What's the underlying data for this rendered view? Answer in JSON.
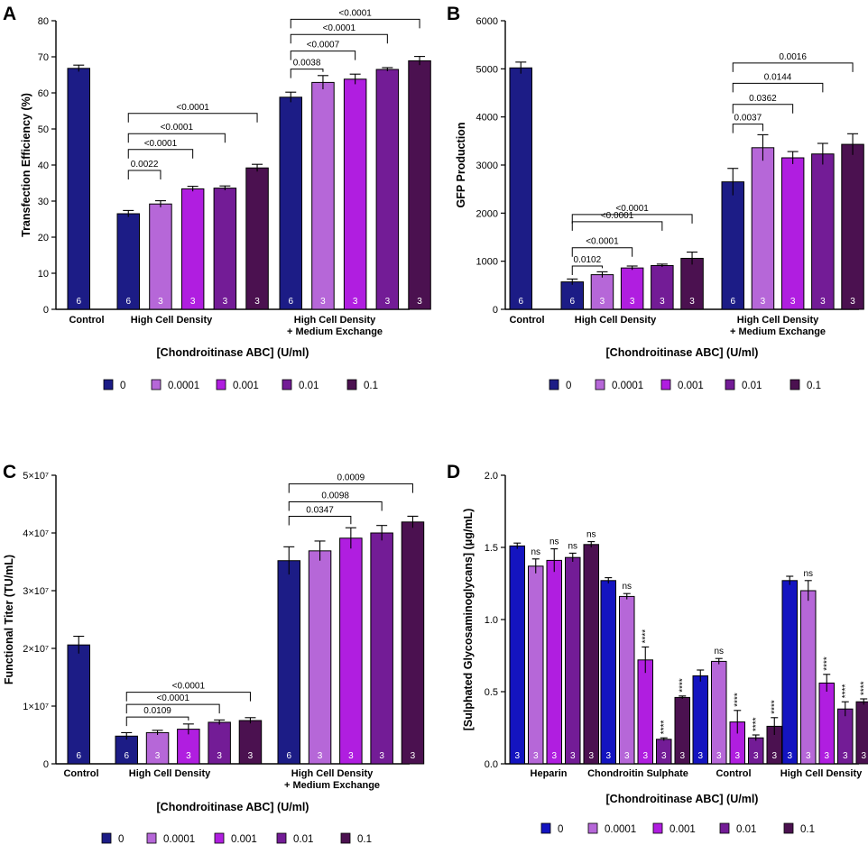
{
  "colors": {
    "c0": "#1c1c86",
    "c00001": "#b667d8",
    "c0001": "#b01ee0",
    "c001": "#731c96",
    "c01": "#4b1150",
    "d0": "#1414c0"
  },
  "chart_data": [
    {
      "panel": "A",
      "type": "bar",
      "ylabel": "Transfection Efficiency (%)",
      "xlabel": "[Chondroitinase ABC] (U/ml)",
      "ylim": [
        0,
        80
      ],
      "yticks": [
        "0",
        "10",
        "20",
        "30",
        "40",
        "50",
        "60",
        "70",
        "80"
      ],
      "tickvals": [
        0,
        10,
        20,
        30,
        40,
        50,
        60,
        70,
        80
      ],
      "legend": [
        "0",
        "0.0001",
        "0.001",
        "0.01",
        "0.1"
      ],
      "groups": [
        {
          "label": "Control",
          "bars": [
            {
              "s": 0,
              "v": 66.8,
              "e": 0.9,
              "n": "6"
            }
          ]
        },
        {
          "label": "High Cell Density",
          "bars": [
            {
              "s": 0,
              "v": 26.5,
              "e": 0.9,
              "n": "6"
            },
            {
              "s": 1,
              "v": 29.2,
              "e": 0.9,
              "n": "3"
            },
            {
              "s": 2,
              "v": 33.4,
              "e": 0.7,
              "n": "3"
            },
            {
              "s": 3,
              "v": 33.6,
              "e": 0.6,
              "n": "3"
            },
            {
              "s": 4,
              "v": 39.2,
              "e": 1.0,
              "n": "3"
            }
          ]
        },
        {
          "label": "High Cell Density\n+ Medium Exchange",
          "bars": [
            {
              "s": 0,
              "v": 58.8,
              "e": 1.4,
              "n": "6"
            },
            {
              "s": 1,
              "v": 62.9,
              "e": 1.9,
              "n": "3"
            },
            {
              "s": 2,
              "v": 63.8,
              "e": 1.4,
              "n": "3"
            },
            {
              "s": 3,
              "v": 66.5,
              "e": 0.5,
              "n": "3"
            },
            {
              "s": 4,
              "v": 68.9,
              "e": 1.2,
              "n": "3"
            }
          ]
        }
      ],
      "brackets": [
        {
          "g": 1,
          "from": 0,
          "to": 1,
          "y": 38.5,
          "label": "0.0022"
        },
        {
          "g": 1,
          "from": 0,
          "to": 2,
          "y": 44.3,
          "label": "<0.0001"
        },
        {
          "g": 1,
          "from": 0,
          "to": 3,
          "y": 48.7,
          "label": "<0.0001"
        },
        {
          "g": 1,
          "from": 0,
          "to": 4,
          "y": 54.3,
          "label": "<0.0001"
        },
        {
          "g": 2,
          "from": 0,
          "to": 1,
          "y": 66.6,
          "label": "0.0038"
        },
        {
          "g": 2,
          "from": 0,
          "to": 2,
          "y": 71.6,
          "label": "<0.0007"
        },
        {
          "g": 2,
          "from": 0,
          "to": 3,
          "y": 76.2,
          "label": "<0.0001"
        },
        {
          "g": 2,
          "from": 0,
          "to": 4,
          "y": 80.4,
          "label": "<0.0001"
        }
      ]
    },
    {
      "panel": "B",
      "type": "bar",
      "ylabel": "GFP Production",
      "xlabel": "[Chondroitinase ABC] (U/ml)",
      "ylim": [
        0,
        6000
      ],
      "yticks": [
        "0",
        "1000",
        "2000",
        "3000",
        "4000",
        "5000",
        "6000"
      ],
      "tickvals": [
        0,
        1000,
        2000,
        3000,
        4000,
        5000,
        6000
      ],
      "legend": [
        "0",
        "0.0001",
        "0.001",
        "0.01",
        "0.1"
      ],
      "groups": [
        {
          "label": "Control",
          "bars": [
            {
              "s": 0,
              "v": 5020,
              "e": 120,
              "n": "6"
            }
          ]
        },
        {
          "label": "High Cell Density",
          "bars": [
            {
              "s": 0,
              "v": 570,
              "e": 60,
              "n": "6"
            },
            {
              "s": 1,
              "v": 720,
              "e": 60,
              "n": "3"
            },
            {
              "s": 2,
              "v": 860,
              "e": 40,
              "n": "3"
            },
            {
              "s": 3,
              "v": 910,
              "e": 30,
              "n": "3"
            },
            {
              "s": 4,
              "v": 1060,
              "e": 130,
              "n": "3"
            }
          ]
        },
        {
          "label": "High Cell Density\n+ Medium Exchange",
          "bars": [
            {
              "s": 0,
              "v": 2650,
              "e": 280,
              "n": "6"
            },
            {
              "s": 1,
              "v": 3360,
              "e": 270,
              "n": "3"
            },
            {
              "s": 2,
              "v": 3150,
              "e": 130,
              "n": "3"
            },
            {
              "s": 3,
              "v": 3230,
              "e": 220,
              "n": "3"
            },
            {
              "s": 4,
              "v": 3430,
              "e": 220,
              "n": "3"
            }
          ]
        }
      ],
      "brackets": [
        {
          "g": 1,
          "from": 0,
          "to": 1,
          "y": 900,
          "label": "0.0102"
        },
        {
          "g": 1,
          "from": 0,
          "to": 2,
          "y": 1280,
          "label": "<0.0001"
        },
        {
          "g": 1,
          "from": 0,
          "to": 3,
          "y": 1820,
          "label": "<0.0001"
        },
        {
          "g": 1,
          "from": 0,
          "to": 4,
          "y": 1970,
          "label": "<0.0001"
        },
        {
          "g": 2,
          "from": 0,
          "to": 1,
          "y": 3850,
          "label": "0.0037"
        },
        {
          "g": 2,
          "from": 0,
          "to": 2,
          "y": 4260,
          "label": "0.0362"
        },
        {
          "g": 2,
          "from": 0,
          "to": 3,
          "y": 4700,
          "label": "0.0144"
        },
        {
          "g": 2,
          "from": 0,
          "to": 4,
          "y": 5120,
          "label": "0.0016"
        }
      ]
    },
    {
      "panel": "C",
      "type": "bar",
      "ylabel": "Functional Titer (TU/mL)",
      "xlabel": "[Chondroitinase ABC] (U/ml)",
      "ylim": [
        0,
        50000000
      ],
      "yticks": [
        "0",
        "1×10⁷",
        "2×10⁷",
        "3×10⁷",
        "4×10⁷",
        "5×10⁷"
      ],
      "tickvals": [
        0,
        10000000,
        20000000,
        30000000,
        40000000,
        50000000
      ],
      "legend": [
        "0",
        "0.0001",
        "0.001",
        "0.01",
        "0.1"
      ],
      "groups": [
        {
          "label": "Control",
          "bars": [
            {
              "s": 0,
              "v": 20600000,
              "e": 1500000,
              "n": "6"
            }
          ]
        },
        {
          "label": "High Cell Density",
          "bars": [
            {
              "s": 0,
              "v": 4800000,
              "e": 600000,
              "n": "6"
            },
            {
              "s": 1,
              "v": 5400000,
              "e": 400000,
              "n": "3"
            },
            {
              "s": 2,
              "v": 6000000,
              "e": 900000,
              "n": "3"
            },
            {
              "s": 3,
              "v": 7200000,
              "e": 400000,
              "n": "3"
            },
            {
              "s": 4,
              "v": 7500000,
              "e": 500000,
              "n": "3"
            }
          ]
        },
        {
          "label": "High Cell Density\n+ Medium Exchange",
          "bars": [
            {
              "s": 0,
              "v": 35200000,
              "e": 2400000,
              "n": "6"
            },
            {
              "s": 1,
              "v": 36900000,
              "e": 1700000,
              "n": "3"
            },
            {
              "s": 2,
              "v": 39100000,
              "e": 1800000,
              "n": "3"
            },
            {
              "s": 3,
              "v": 40000000,
              "e": 1300000,
              "n": "3"
            },
            {
              "s": 4,
              "v": 41900000,
              "e": 1000000,
              "n": "3"
            }
          ]
        }
      ],
      "brackets": [
        {
          "g": 1,
          "from": 0,
          "to": 2,
          "y": 8100000,
          "label": "0.0109"
        },
        {
          "g": 1,
          "from": 0,
          "to": 3,
          "y": 10300000,
          "label": "<0.0001"
        },
        {
          "g": 1,
          "from": 0,
          "to": 4,
          "y": 12400000,
          "label": "<0.0001"
        },
        {
          "g": 2,
          "from": 0,
          "to": 2,
          "y": 42900000,
          "label": "0.0347"
        },
        {
          "g": 2,
          "from": 0,
          "to": 3,
          "y": 45400000,
          "label": "0.0098"
        },
        {
          "g": 2,
          "from": 0,
          "to": 4,
          "y": 48500000,
          "label": "0.0009"
        }
      ]
    },
    {
      "panel": "D",
      "type": "bar",
      "ylabel": "[Sulphated Glycosaminoglycans] (μg/mL)",
      "xlabel": "[Chondroitinase ABC] (U/ml)",
      "ylim": [
        0,
        2.0
      ],
      "yticks": [
        "0.0",
        "0.5",
        "1.0",
        "1.5",
        "2.0"
      ],
      "tickvals": [
        0,
        0.5,
        1.0,
        1.5,
        2.0
      ],
      "legend": [
        "0",
        "0.0001",
        "0.001",
        "0.01",
        "0.1"
      ],
      "groups": [
        {
          "label": "Heparin",
          "bars": [
            {
              "s": 0,
              "v": 1.51,
              "e": 0.02,
              "n": "3"
            },
            {
              "s": 1,
              "v": 1.37,
              "e": 0.05,
              "n": "3",
              "sig": "ns"
            },
            {
              "s": 2,
              "v": 1.41,
              "e": 0.08,
              "n": "3",
              "sig": "ns"
            },
            {
              "s": 3,
              "v": 1.43,
              "e": 0.03,
              "n": "3",
              "sig": "ns"
            },
            {
              "s": 4,
              "v": 1.52,
              "e": 0.02,
              "n": "3",
              "sig": "ns"
            }
          ]
        },
        {
          "label": "Chondroitin Sulphate",
          "bars": [
            {
              "s": 0,
              "v": 1.27,
              "e": 0.02,
              "n": "3"
            },
            {
              "s": 1,
              "v": 1.16,
              "e": 0.02,
              "n": "3",
              "sig": "ns"
            },
            {
              "s": 2,
              "v": 0.72,
              "e": 0.09,
              "n": "3",
              "sig": "****"
            },
            {
              "s": 3,
              "v": 0.17,
              "e": 0.01,
              "n": "3",
              "sig": "****"
            },
            {
              "s": 4,
              "v": 0.46,
              "e": 0.01,
              "n": "3",
              "sig": "****"
            }
          ]
        },
        {
          "label": "Control",
          "bars": [
            {
              "s": 0,
              "v": 0.61,
              "e": 0.04,
              "n": "3"
            },
            {
              "s": 1,
              "v": 0.71,
              "e": 0.02,
              "n": "3",
              "sig": "ns"
            },
            {
              "s": 2,
              "v": 0.29,
              "e": 0.08,
              "n": "3",
              "sig": "****"
            },
            {
              "s": 3,
              "v": 0.18,
              "e": 0.02,
              "n": "3",
              "sig": "****"
            },
            {
              "s": 4,
              "v": 0.26,
              "e": 0.06,
              "n": "3",
              "sig": "****"
            }
          ]
        },
        {
          "label": "High Cell Density",
          "bars": [
            {
              "s": 0,
              "v": 1.27,
              "e": 0.03,
              "n": "3"
            },
            {
              "s": 1,
              "v": 1.2,
              "e": 0.07,
              "n": "3",
              "sig": "ns"
            },
            {
              "s": 2,
              "v": 0.56,
              "e": 0.06,
              "n": "3",
              "sig": "****"
            },
            {
              "s": 3,
              "v": 0.38,
              "e": 0.05,
              "n": "3",
              "sig": "****"
            },
            {
              "s": 4,
              "v": 0.43,
              "e": 0.02,
              "n": "3",
              "sig": "****"
            }
          ]
        }
      ],
      "brackets": []
    }
  ]
}
